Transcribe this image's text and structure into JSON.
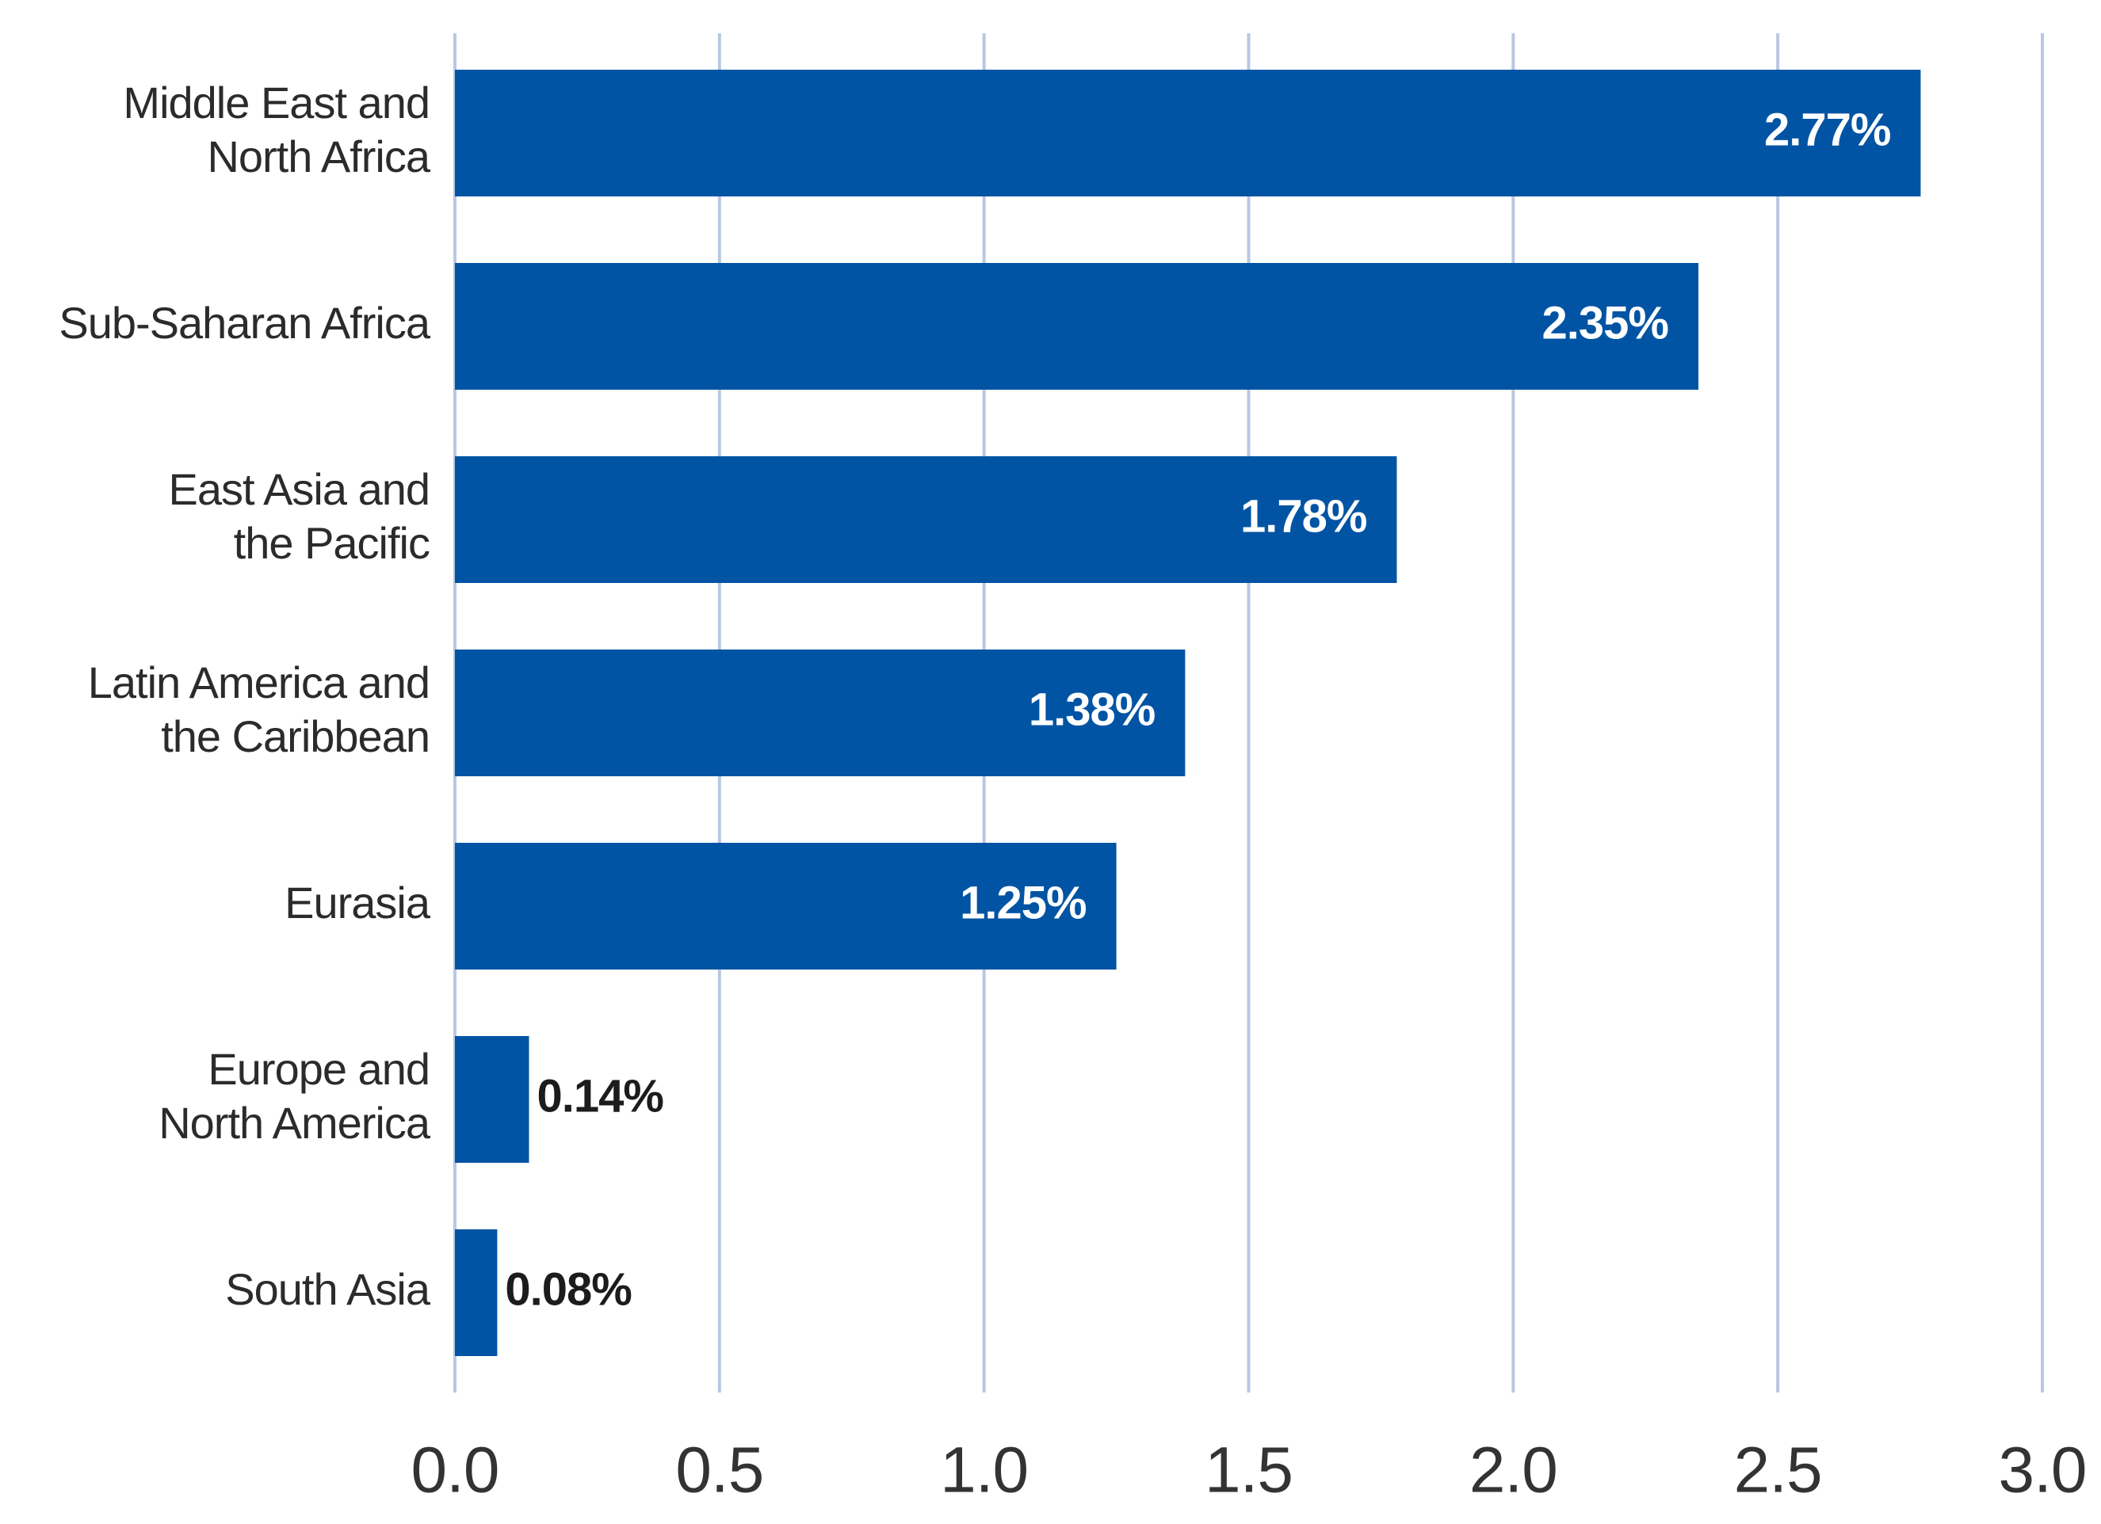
{
  "colors": {
    "bar": "#0054a3",
    "grid": "#b9c7e3",
    "label_text": "#2b2b2b",
    "value_inside": "#ffffff",
    "value_outside": "#1c1c1c"
  },
  "chart_data": {
    "type": "bar",
    "orientation": "horizontal",
    "title": "",
    "xlabel": "",
    "ylabel": "",
    "categories": [
      [
        "Middle East and",
        "North Africa"
      ],
      [
        "Sub-Saharan Africa"
      ],
      [
        "East Asia and",
        "the Pacific"
      ],
      [
        "Latin America and",
        "the Caribbean"
      ],
      [
        "Eurasia"
      ],
      [
        "Europe and",
        "North America"
      ],
      [
        "South Asia"
      ]
    ],
    "values": [
      2.77,
      2.35,
      1.78,
      1.38,
      1.25,
      0.14,
      0.08
    ],
    "value_labels": [
      "2.77%",
      "2.35%",
      "1.78%",
      "1.38%",
      "1.25%",
      "0.14%",
      "0.08%"
    ],
    "xlim": [
      0,
      3.0
    ],
    "xticks": [
      0,
      0.5,
      1.0,
      1.5,
      2.0,
      2.5,
      3.0
    ],
    "xtick_labels": [
      "0.0",
      "0.5",
      "1.0",
      "1.5",
      "2.0",
      "2.5",
      "3.0"
    ],
    "grid": true,
    "legend": "none"
  }
}
